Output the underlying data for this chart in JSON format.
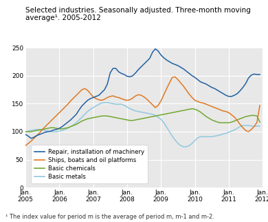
{
  "title_line1": "Selected industries. Seasonally adjusted. Three-month moving",
  "title_line2": "average¹. 2005-2012",
  "footnote": "¹ The index value for period m is the average of period m, m-1 and m-2.",
  "ylim": [
    0,
    250
  ],
  "yticks": [
    0,
    50,
    100,
    150,
    200,
    250
  ],
  "xtick_positions": [
    0,
    12,
    24,
    36,
    48,
    60,
    72,
    84
  ],
  "xtick_labels": [
    "Jan.\n2005",
    "Jan.\n2006",
    "Jan.\n2007",
    "Jan.\n2008",
    "Jan.\n2009",
    "Jan.\n2010",
    "Jan.\n2011",
    "Jan.\n2012"
  ],
  "plot_bg": "#e8e8e8",
  "fig_bg": "#ffffff",
  "grid_color": "#ffffff",
  "colors": {
    "repair": "#2060a0",
    "ships": "#e07820",
    "chemicals": "#70a830",
    "metals": "#90c8e0"
  },
  "legend_labels": [
    "Repair, installation of machinery",
    "Ships, boats and oil platforms",
    "Basic chemicals",
    "Basic metals"
  ],
  "repair": [
    95,
    92,
    88,
    90,
    93,
    95,
    97,
    99,
    100,
    101,
    103,
    104,
    106,
    109,
    113,
    117,
    121,
    126,
    131,
    139,
    146,
    151,
    156,
    159,
    161,
    163,
    165,
    170,
    175,
    185,
    205,
    213,
    213,
    207,
    204,
    202,
    199,
    198,
    200,
    205,
    211,
    216,
    221,
    226,
    231,
    242,
    248,
    244,
    237,
    232,
    228,
    225,
    222,
    220,
    218,
    215,
    212,
    208,
    204,
    200,
    197,
    193,
    189,
    187,
    185,
    182,
    179,
    177,
    174,
    171,
    168,
    165,
    163,
    163,
    165,
    168,
    173,
    179,
    186,
    196,
    201,
    203,
    202,
    202
  ],
  "ships": [
    75,
    79,
    83,
    88,
    93,
    98,
    104,
    109,
    114,
    119,
    124,
    129,
    134,
    139,
    144,
    149,
    155,
    160,
    165,
    170,
    175,
    177,
    174,
    168,
    162,
    159,
    157,
    156,
    158,
    161,
    163,
    164,
    162,
    161,
    159,
    157,
    156,
    157,
    160,
    164,
    166,
    165,
    162,
    158,
    153,
    148,
    143,
    147,
    155,
    166,
    177,
    187,
    197,
    198,
    193,
    187,
    181,
    174,
    167,
    161,
    156,
    154,
    152,
    151,
    149,
    147,
    145,
    143,
    141,
    139,
    137,
    136,
    134,
    130,
    126,
    120,
    113,
    107,
    102,
    100,
    104,
    109,
    117,
    147
  ],
  "chemicals": [
    100,
    100,
    100,
    101,
    102,
    103,
    104,
    105,
    106,
    107,
    107,
    106,
    105,
    105,
    106,
    107,
    109,
    111,
    113,
    116,
    119,
    121,
    123,
    124,
    125,
    126,
    127,
    128,
    128,
    128,
    127,
    126,
    125,
    124,
    123,
    122,
    121,
    120,
    120,
    121,
    122,
    123,
    124,
    125,
    126,
    127,
    128,
    129,
    130,
    131,
    132,
    133,
    134,
    135,
    136,
    137,
    138,
    139,
    140,
    141,
    140,
    138,
    135,
    131,
    127,
    124,
    121,
    119,
    117,
    116,
    116,
    116,
    116,
    117,
    119,
    121,
    123,
    125,
    127,
    128,
    129,
    129,
    128,
    117
  ],
  "metals": [
    100,
    101,
    102,
    103,
    104,
    104,
    103,
    102,
    101,
    100,
    100,
    100,
    101,
    102,
    104,
    106,
    109,
    112,
    116,
    121,
    126,
    131,
    136,
    140,
    143,
    146,
    149,
    151,
    152,
    152,
    151,
    150,
    149,
    149,
    149,
    147,
    144,
    141,
    139,
    137,
    136,
    135,
    134,
    133,
    132,
    131,
    129,
    126,
    122,
    116,
    108,
    100,
    92,
    85,
    79,
    75,
    73,
    73,
    75,
    79,
    84,
    89,
    91,
    91,
    91,
    91,
    91,
    92,
    93,
    94,
    96,
    97,
    99,
    101,
    103,
    106,
    109,
    111,
    111,
    111,
    110,
    110,
    110,
    110
  ]
}
